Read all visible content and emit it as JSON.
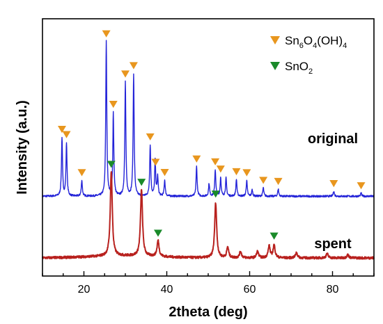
{
  "chart_data": {
    "type": "line",
    "xlabel": "2theta (deg)",
    "ylabel": "Intensity (a.u.)",
    "xlim": [
      10,
      90
    ],
    "x_ticks": [
      "20",
      "40",
      "60",
      "80"
    ],
    "y_ticks": "none",
    "grid": false,
    "legend_placement": "top-right",
    "legend": [
      {
        "base": "Sn",
        "sub1": "6",
        "mid": "O",
        "sub2": "4",
        "tail": "(OH)",
        "sub3": "4",
        "marker": "down-triangle",
        "color": "#e8961e"
      },
      {
        "base": "SnO",
        "sub1": "2",
        "marker": "down-triangle",
        "color": "#1a8a2a"
      }
    ],
    "series": [
      {
        "name": "original",
        "color": "#2323d8",
        "relative_baseline": 0.57,
        "peaks": [
          {
            "x": 14.7,
            "height": 0.55
          },
          {
            "x": 15.8,
            "height": 0.5
          },
          {
            "x": 19.5,
            "height": 0.15
          },
          {
            "x": 25.4,
            "height": 1.45
          },
          {
            "x": 27.1,
            "height": 0.78
          },
          {
            "x": 30.0,
            "height": 1.07
          },
          {
            "x": 32.0,
            "height": 1.15
          },
          {
            "x": 36.0,
            "height": 0.48
          },
          {
            "x": 37.2,
            "height": 0.33
          },
          {
            "x": 37.8,
            "height": 0.18
          },
          {
            "x": 39.5,
            "height": 0.15
          },
          {
            "x": 47.2,
            "height": 0.28
          },
          {
            "x": 50.2,
            "height": 0.12
          },
          {
            "x": 51.7,
            "height": 0.25
          },
          {
            "x": 53.0,
            "height": 0.18
          },
          {
            "x": 54.3,
            "height": 0.17
          },
          {
            "x": 56.8,
            "height": 0.16
          },
          {
            "x": 59.3,
            "height": 0.15
          },
          {
            "x": 60.6,
            "height": 0.06
          },
          {
            "x": 63.3,
            "height": 0.08
          },
          {
            "x": 66.9,
            "height": 0.07
          },
          {
            "x": 80.3,
            "height": 0.05
          },
          {
            "x": 86.9,
            "height": 0.03
          }
        ],
        "markers": [
          14.7,
          15.8,
          19.5,
          25.4,
          27.1,
          30.0,
          32.0,
          36.0,
          37.3,
          39.5,
          47.2,
          51.7,
          53.0,
          56.8,
          59.3,
          63.3,
          66.9,
          80.3,
          86.9
        ]
      },
      {
        "name": "spent",
        "color": "#b8211e",
        "relative_baseline": 0.0,
        "peaks": [
          {
            "x": 26.6,
            "height": 0.8
          },
          {
            "x": 33.9,
            "height": 0.63
          },
          {
            "x": 37.9,
            "height": 0.15
          },
          {
            "x": 51.8,
            "height": 0.52
          },
          {
            "x": 54.7,
            "height": 0.1
          },
          {
            "x": 57.8,
            "height": 0.06
          },
          {
            "x": 61.9,
            "height": 0.06
          },
          {
            "x": 64.7,
            "height": 0.11
          },
          {
            "x": 65.9,
            "height": 0.12
          },
          {
            "x": 71.3,
            "height": 0.05
          },
          {
            "x": 78.7,
            "height": 0.04
          },
          {
            "x": 83.7,
            "height": 0.03
          }
        ],
        "markers": [
          26.6,
          33.9,
          37.9,
          51.8,
          65.9
        ]
      }
    ]
  }
}
